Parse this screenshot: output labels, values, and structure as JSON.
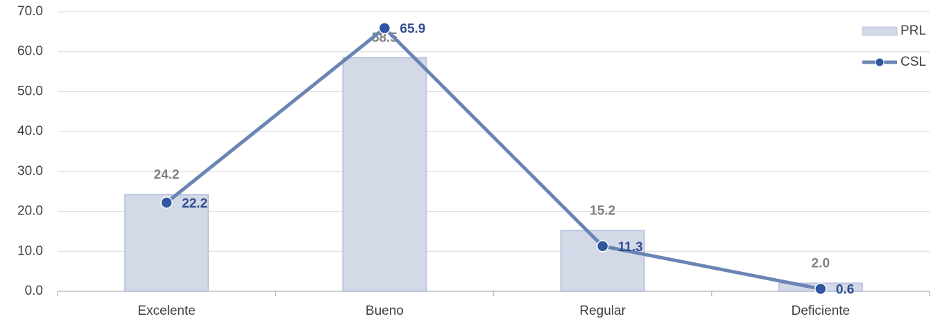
{
  "chart_data": {
    "type": "combo",
    "categories": [
      "Excelente",
      "Bueno",
      "Regular",
      "Deficiente"
    ],
    "series": [
      {
        "name": "PRL",
        "type": "bar",
        "color": "#d3d9e6",
        "values": [
          24.2,
          58.5,
          15.2,
          2.0
        ],
        "value_labels": [
          "24.2",
          "58.5",
          "15.2",
          "2.0"
        ]
      },
      {
        "name": "CSL",
        "type": "line",
        "color": "#6a84b4",
        "values": [
          22.2,
          65.9,
          11.3,
          0.6
        ],
        "value_labels": [
          "22.2",
          "65.9",
          "11.3",
          "0.6"
        ]
      }
    ],
    "ylim": [
      0,
      70
    ],
    "yticks": [
      {
        "value": 0,
        "label": "0.0"
      },
      {
        "value": 10,
        "label": "10.0"
      },
      {
        "value": 20,
        "label": "20.0"
      },
      {
        "value": 30,
        "label": "30.0"
      },
      {
        "value": 40,
        "label": "40.0"
      },
      {
        "value": 50,
        "label": "50.0"
      },
      {
        "value": 60,
        "label": "60.0"
      },
      {
        "value": 70,
        "label": "70.0"
      }
    ],
    "grid": true,
    "legend": "top-right"
  }
}
